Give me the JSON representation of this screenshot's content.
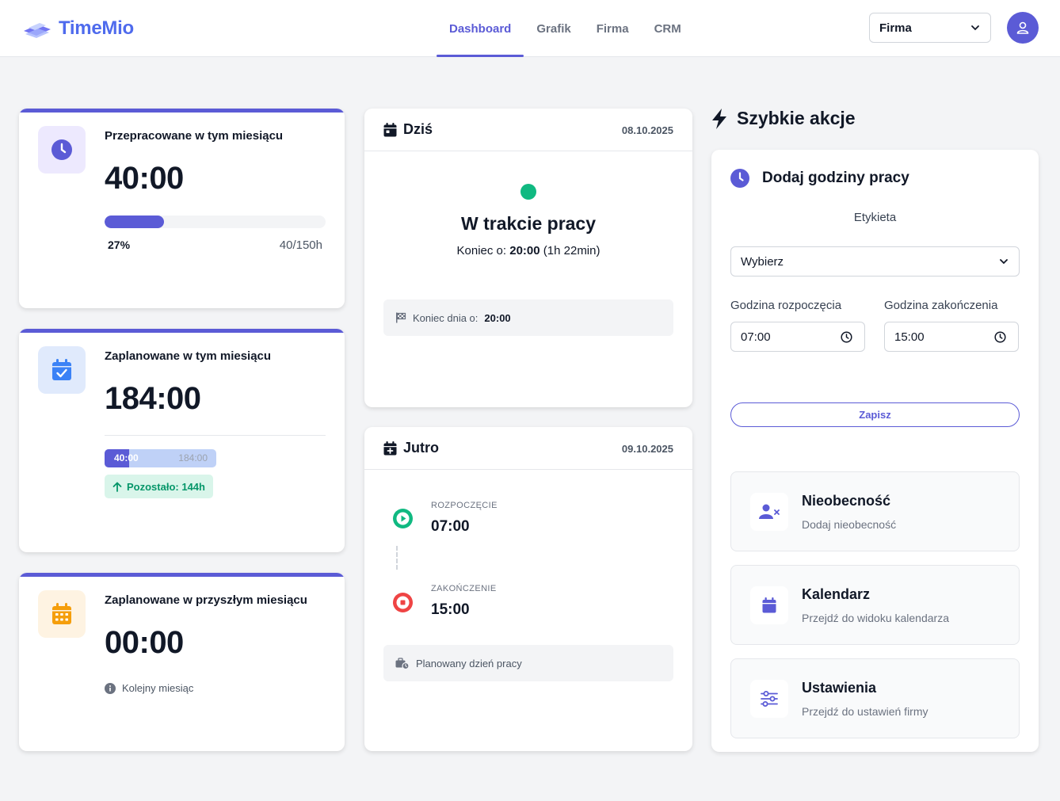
{
  "app": {
    "name": "TimeMio"
  },
  "nav": [
    {
      "label": "Dashboard",
      "active": true
    },
    {
      "label": "Grafik",
      "active": false
    },
    {
      "label": "Firma",
      "active": false
    },
    {
      "label": "CRM",
      "active": false
    }
  ],
  "company_select": {
    "value": "Firma"
  },
  "colors": {
    "primary": "#5b5bd6",
    "success": "#10b981",
    "danger": "#ef4444",
    "warning": "#f59e0b",
    "brand": "#4f6bed"
  },
  "stats": {
    "worked": {
      "title": "Przepracowane w tym miesiącu",
      "value": "40:00",
      "progress_fraction": 0.27,
      "percent": "27%",
      "hours": "40/150h",
      "icon": "clock-icon"
    },
    "planned": {
      "title": "Zaplanowane w tym miesiącu",
      "value": "184:00",
      "done": "40:00",
      "total": "184:00",
      "done_fraction": 0.217,
      "remaining": "Pozostało: 144h",
      "icon": "calendar-check-icon"
    },
    "next": {
      "title": "Zaplanowane w przyszłym miesiącu",
      "value": "00:00",
      "note": "Kolejny miesiąc",
      "icon": "calendar-grid-icon"
    }
  },
  "today": {
    "title": "Dziś",
    "date": "08.10.2025",
    "status": "W trakcie pracy",
    "end_prefix": "Koniec o:",
    "end_time": "20:00",
    "end_remaining": "(1h 22min)",
    "day_end_label": "Koniec dnia o:",
    "day_end_time": "20:00"
  },
  "tomorrow": {
    "title": "Jutro",
    "date": "09.10.2025",
    "start_label": "ROZPOCZĘCIE",
    "start_time": "07:00",
    "end_label": "ZAKOŃCZENIE",
    "end_time": "15:00",
    "note": "Planowany dzień pracy"
  },
  "quick": {
    "title": "Szybkie akcje",
    "form": {
      "title": "Dodaj godziny pracy",
      "label_field": "Etykieta",
      "select_value": "Wybierz",
      "start_label": "Godzina rozpoczęcia",
      "start_value": "07:00",
      "end_label": "Godzina zakończenia",
      "end_value": "15:00",
      "save": "Zapisz"
    },
    "actions": [
      {
        "title": "Nieobecność",
        "subtitle": "Dodaj nieobecność",
        "icon": "user-x-icon"
      },
      {
        "title": "Kalendarz",
        "subtitle": "Przejdź do widoku kalendarza",
        "icon": "calendar-icon"
      },
      {
        "title": "Ustawienia",
        "subtitle": "Przejdź do ustawień firmy",
        "icon": "sliders-icon"
      }
    ]
  }
}
